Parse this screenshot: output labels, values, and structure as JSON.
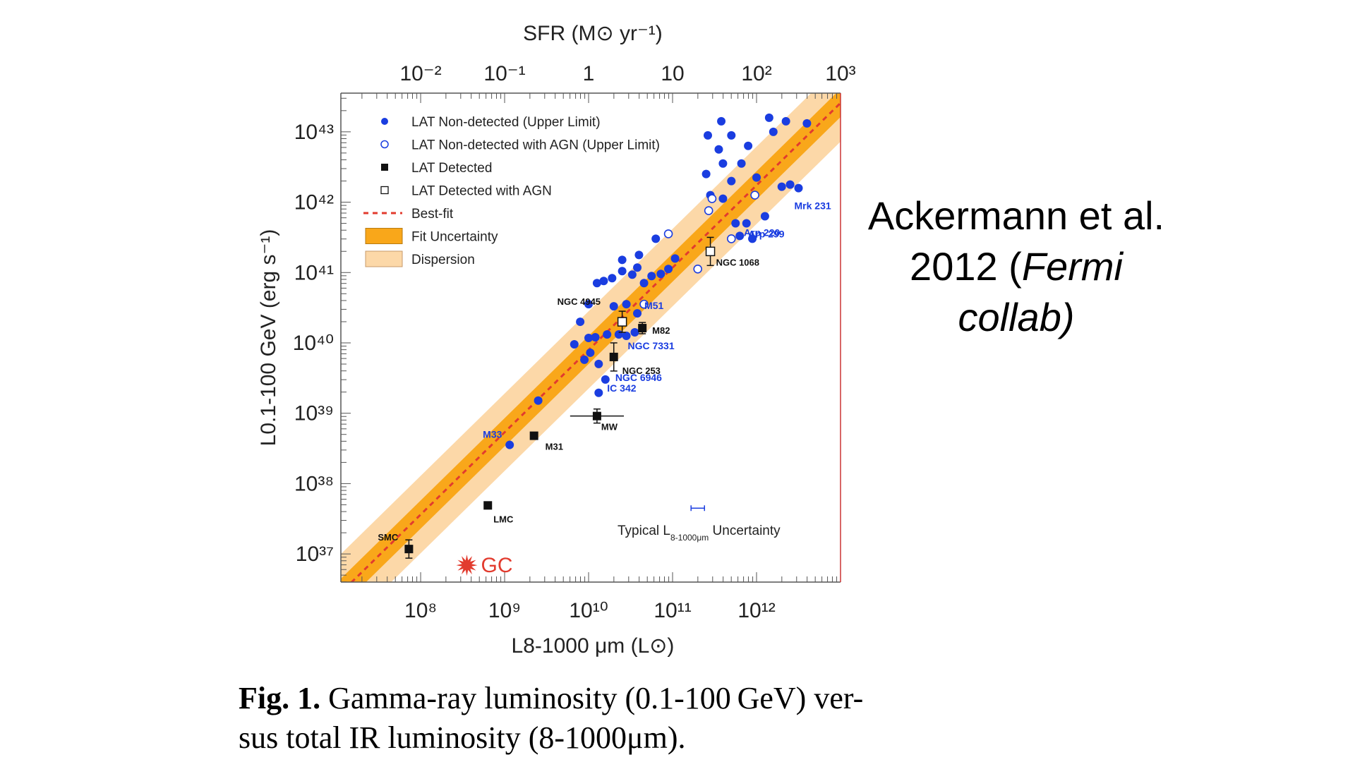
{
  "attribution": {
    "line1": "Ackermann et al.",
    "line2_prefix": "2012 (",
    "line2_italic": "Fermi",
    "line3_italic": "collab)"
  },
  "caption": {
    "label": "Fig. 1.",
    "text_line1": " Gamma-ray luminosity (0.1-100 GeV) ver-",
    "text_line2": "sus total IR luminosity (8-1000μm)."
  },
  "chart_data": {
    "type": "scatter",
    "x_scale": "log",
    "y_scale": "log",
    "xlim_log": [
      7.05,
      13.0
    ],
    "ylim_log": [
      36.6,
      43.55
    ],
    "top_axis": {
      "label": "SFR (M⊙ yr⁻¹)",
      "ticks": [
        {
          "log": -2,
          "label": "10⁻²"
        },
        {
          "log": -1,
          "label": "10⁻¹"
        },
        {
          "log": 0,
          "label": "1"
        },
        {
          "log": 1,
          "label": "10"
        },
        {
          "log": 2,
          "label": "10²"
        },
        {
          "log": 3,
          "label": "10³"
        }
      ],
      "sfr_to_lir_log_offset": 10.0
    },
    "x_axis": {
      "label": "L8-1000 μm (L⊙)",
      "ticks": [
        {
          "log": 8,
          "label": "10⁸"
        },
        {
          "log": 9,
          "label": "10⁹"
        },
        {
          "log": 10,
          "label": "10¹⁰"
        },
        {
          "log": 11,
          "label": "10¹¹"
        },
        {
          "log": 12,
          "label": "10¹²"
        }
      ]
    },
    "y_axis": {
      "label": "L0.1-100 GeV (erg s⁻¹)",
      "ticks": [
        {
          "log": 37,
          "label": "10³⁷"
        },
        {
          "log": 38,
          "label": "10³⁸"
        },
        {
          "log": 39,
          "label": "10³⁹"
        },
        {
          "log": 40,
          "label": "10⁴⁰"
        },
        {
          "log": 41,
          "label": "10⁴¹"
        },
        {
          "log": 42,
          "label": "10⁴²"
        },
        {
          "log": 43,
          "label": "10⁴³"
        }
      ]
    },
    "best_fit": {
      "slope": 1.17,
      "intercept": 28.2
    },
    "fit_uncertainty_half_width": 0.2,
    "dispersion_half_width": 0.55,
    "legend": [
      {
        "key": "nondetected",
        "label": "LAT Non-detected (Upper Limit)"
      },
      {
        "key": "nondetected_agn",
        "label": "LAT Non-detected with AGN (Upper Limit)"
      },
      {
        "key": "detected",
        "label": "LAT Detected"
      },
      {
        "key": "detected_agn",
        "label": "LAT Detected with AGN"
      },
      {
        "key": "bestfit",
        "label": "Best-fit"
      },
      {
        "key": "fit_unc",
        "label": "Fit Uncertainty"
      },
      {
        "key": "dispersion",
        "label": "Dispersion"
      }
    ],
    "detected": [
      {
        "name": "SMC",
        "x": 7.86,
        "y": 37.07,
        "yerr": 0.13
      },
      {
        "name": "LMC",
        "x": 8.8,
        "y": 37.69
      },
      {
        "name": "M31",
        "x": 9.35,
        "y": 38.68
      },
      {
        "name": "MW",
        "x": 10.1,
        "y": 38.96,
        "xerr": 0.32,
        "yerr": 0.1
      },
      {
        "name": "NGC 253",
        "x": 10.3,
        "y": 39.8,
        "yerr": 0.2
      },
      {
        "name": "M82",
        "x": 10.64,
        "y": 40.21,
        "yerr": 0.08
      }
    ],
    "detected_agn": [
      {
        "name": "NGC 1068",
        "x": 11.45,
        "y": 41.3,
        "yerr": 0.2
      },
      {
        "name": "NGC 4945",
        "x": 10.4,
        "y": 40.3,
        "yerr": 0.15
      }
    ],
    "labelled_upper_limits": [
      {
        "name": "M33",
        "x": 9.06,
        "y": 38.55
      },
      {
        "name": "IC 342",
        "x": 10.12,
        "y": 39.29
      },
      {
        "name": "NGC 6946",
        "x": 10.2,
        "y": 39.48
      },
      {
        "name": "NGC 7331",
        "x": 10.55,
        "y": 40.15
      },
      {
        "name": "M51",
        "x": 10.58,
        "y": 40.42
      },
      {
        "name": "Arp 299",
        "x": 11.8,
        "y": 41.52
      },
      {
        "name": "Arp 220",
        "x": 12.1,
        "y": 41.8
      },
      {
        "name": "Mrk 231",
        "x": 12.5,
        "y": 42.2
      }
    ],
    "nondetected": [
      [
        9.4,
        39.18
      ],
      [
        9.06,
        38.55
      ],
      [
        10.12,
        39.29
      ],
      [
        10.2,
        39.48
      ],
      [
        10.55,
        40.15
      ],
      [
        10.58,
        40.42
      ],
      [
        9.83,
        39.98
      ],
      [
        9.9,
        40.3
      ],
      [
        9.95,
        39.76
      ],
      [
        10.02,
        39.86
      ],
      [
        10.12,
        39.7
      ],
      [
        10.0,
        40.07
      ],
      [
        10.08,
        40.08
      ],
      [
        10.22,
        40.12
      ],
      [
        10.36,
        40.12
      ],
      [
        10.45,
        40.1
      ],
      [
        10.0,
        40.55
      ],
      [
        10.1,
        40.85
      ],
      [
        10.18,
        40.88
      ],
      [
        10.28,
        40.92
      ],
      [
        10.4,
        41.02
      ],
      [
        10.52,
        40.97
      ],
      [
        10.58,
        41.07
      ],
      [
        10.66,
        40.85
      ],
      [
        10.75,
        40.95
      ],
      [
        10.86,
        40.98
      ],
      [
        10.95,
        41.05
      ],
      [
        11.03,
        41.2
      ],
      [
        10.8,
        41.48
      ],
      [
        10.6,
        41.25
      ],
      [
        10.4,
        41.18
      ],
      [
        10.45,
        40.55
      ],
      [
        10.3,
        40.52
      ],
      [
        11.4,
        42.4
      ],
      [
        11.45,
        42.1
      ],
      [
        11.6,
        42.05
      ],
      [
        11.7,
        42.3
      ],
      [
        11.82,
        42.55
      ],
      [
        12.0,
        42.35
      ],
      [
        11.9,
        42.8
      ],
      [
        11.55,
        42.75
      ],
      [
        11.6,
        42.55
      ],
      [
        11.7,
        42.95
      ],
      [
        11.42,
        42.95
      ],
      [
        11.58,
        43.15
      ],
      [
        12.15,
        43.2
      ],
      [
        12.2,
        43.0
      ],
      [
        12.35,
        43.15
      ],
      [
        12.6,
        43.12
      ],
      [
        12.3,
        42.22
      ],
      [
        12.4,
        42.25
      ],
      [
        12.5,
        42.2
      ],
      [
        11.75,
        41.7
      ],
      [
        11.88,
        41.7
      ],
      [
        11.8,
        41.52
      ],
      [
        12.1,
        41.8
      ],
      [
        11.95,
        41.48
      ]
    ],
    "nondetected_agn": [
      [
        11.43,
        41.88
      ],
      [
        11.47,
        42.05
      ],
      [
        11.98,
        42.1
      ],
      [
        11.7,
        41.48
      ],
      [
        11.3,
        41.05
      ],
      [
        10.66,
        40.55
      ],
      [
        10.95,
        41.55
      ]
    ],
    "annotations": {
      "gc_label": "GC",
      "gc_x": 8.55,
      "gc_y": 36.84,
      "typical_unc_label": "Typical L",
      "typical_unc_sub": "8-1000μm",
      "typical_unc_tail": " Uncertainty",
      "typical_unc_x": 11.3,
      "typical_unc_y": 37.37,
      "typical_unc_halfwidth": 0.08
    },
    "colors": {
      "blue": "#1a3de0",
      "black": "#111111",
      "red": "#e23b2e",
      "fit": "#f9a71a",
      "dispersion": "#fcd8a8",
      "axis": "#555555",
      "frame_right": "#cc3333"
    }
  }
}
